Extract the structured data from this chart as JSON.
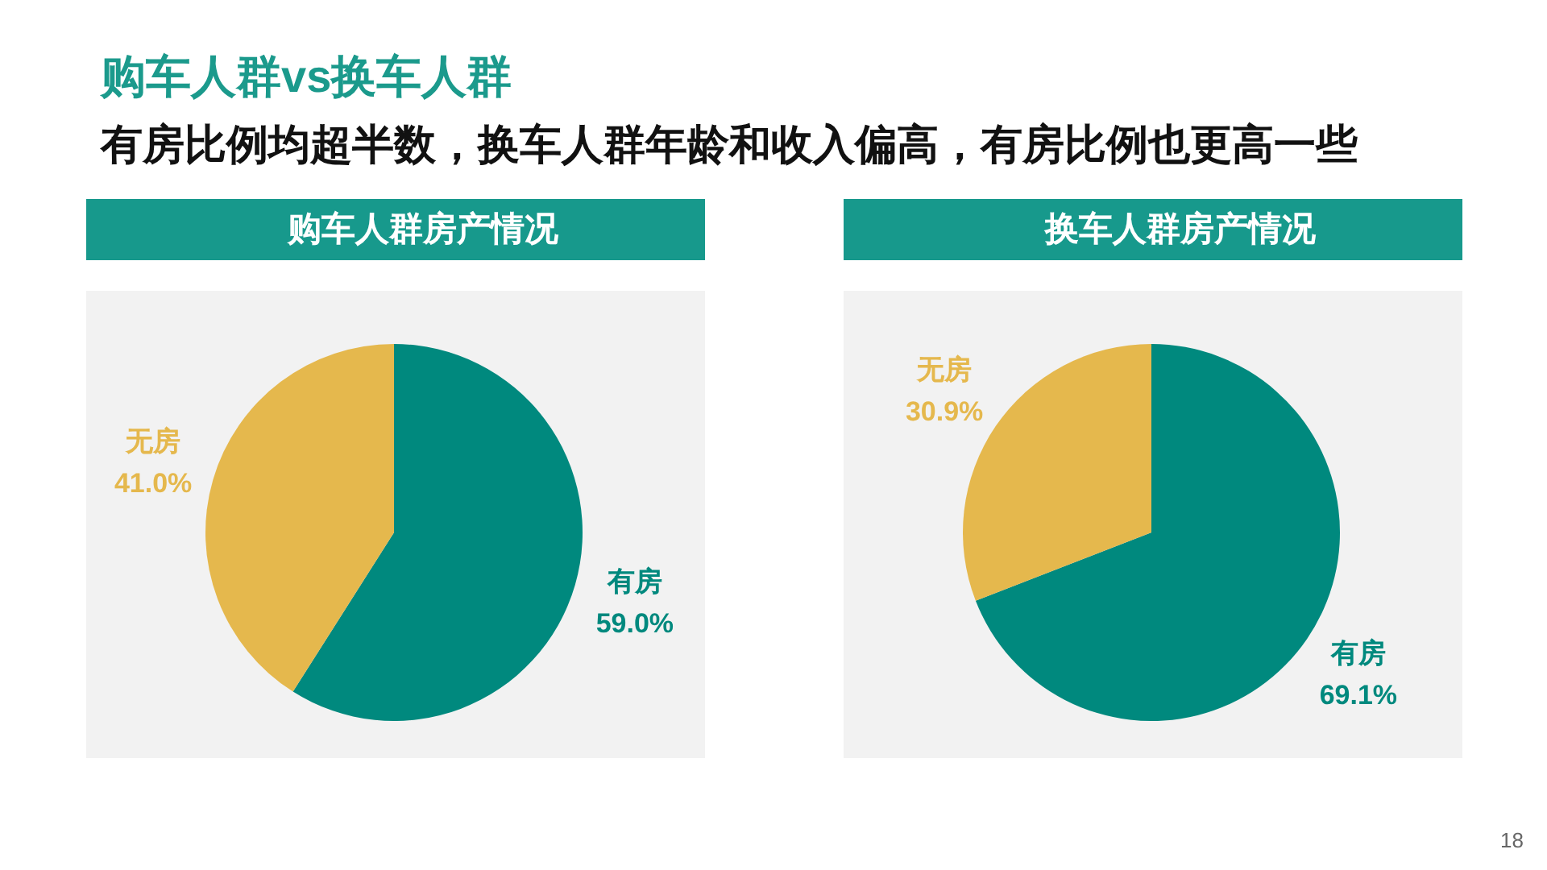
{
  "chart_data": [
    {
      "type": "other",
      "title": "购车人群vs换车人群",
      "subtitle": "有房比例均超半数，换车人群年龄和收入偏高，有房比例也更高一些",
      "annotations": [
        "18"
      ]
    },
    {
      "type": "pie",
      "title": "购车人群房产情况",
      "categories": [
        "有房",
        "无房"
      ],
      "values": [
        59.0,
        41.0
      ],
      "colors": [
        "#00897e",
        "#e5b84d"
      ],
      "value_labels": [
        "59.0%",
        "41.0%"
      ]
    },
    {
      "type": "pie",
      "title": "换车人群房产情况",
      "categories": [
        "有房",
        "无房"
      ],
      "values": [
        69.1,
        30.9
      ],
      "colors": [
        "#00897e",
        "#e5b84d"
      ],
      "value_labels": [
        "69.1%",
        "30.9%"
      ]
    }
  ]
}
